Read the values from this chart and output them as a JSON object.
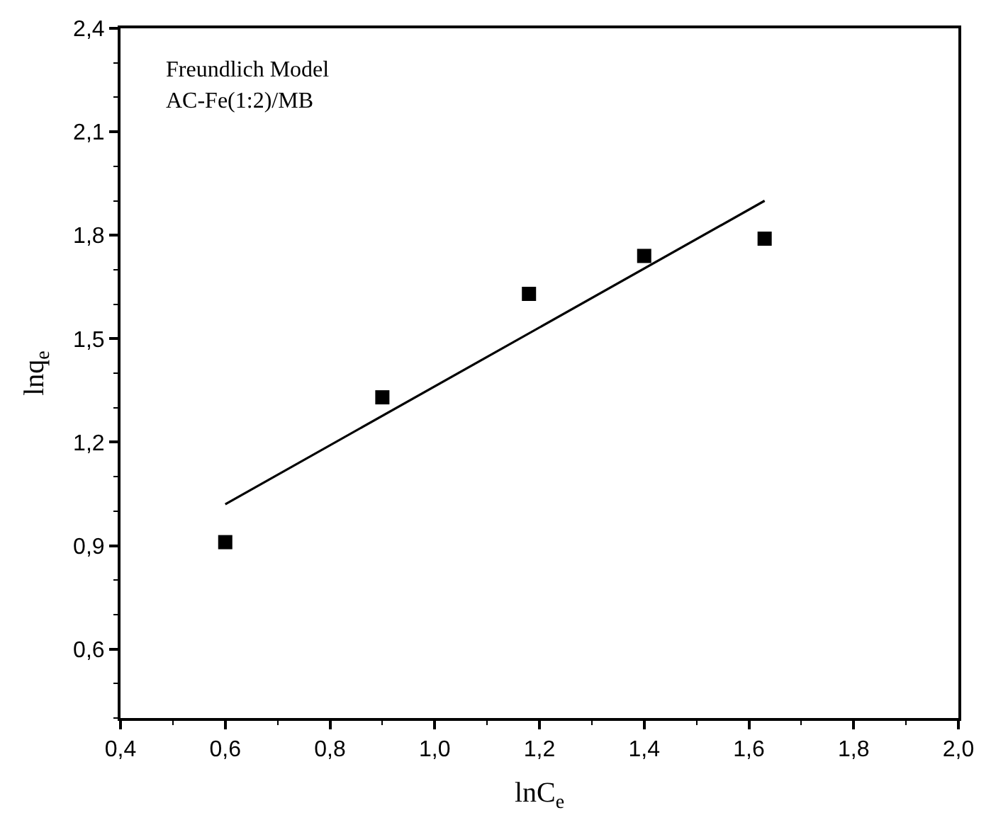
{
  "chart_data": {
    "type": "scatter",
    "xlabel": "lnC$_{e}$",
    "ylabel": "lnq$_{e}$",
    "annotations": [
      "Freundlich Model",
      "AC-Fe(1:2)/MB"
    ],
    "xlim": [
      0.4,
      2.0
    ],
    "ylim": [
      0.4,
      2.4
    ],
    "xticks": [
      {
        "value": 0.4,
        "label": "0,4"
      },
      {
        "value": 0.6,
        "label": "0,6"
      },
      {
        "value": 0.8,
        "label": "0,8"
      },
      {
        "value": 1.0,
        "label": "1,0"
      },
      {
        "value": 1.2,
        "label": "1,2"
      },
      {
        "value": 1.4,
        "label": "1,4"
      },
      {
        "value": 1.6,
        "label": "1,6"
      },
      {
        "value": 1.8,
        "label": "1,8"
      },
      {
        "value": 2.0,
        "label": "2,0"
      }
    ],
    "yticks": [
      {
        "value": 0.6,
        "label": "0,6"
      },
      {
        "value": 0.9,
        "label": "0,9"
      },
      {
        "value": 1.2,
        "label": "1,2"
      },
      {
        "value": 1.5,
        "label": "1,5"
      },
      {
        "value": 1.8,
        "label": "1,8"
      },
      {
        "value": 2.1,
        "label": "2,1"
      },
      {
        "value": 2.4,
        "label": "2,4"
      }
    ],
    "legend": false,
    "series": [
      {
        "marker": "square",
        "color": "#000000",
        "x": [
          0.6,
          0.9,
          1.18,
          1.4,
          1.63
        ],
        "values": [
          0.91,
          1.33,
          1.63,
          1.74,
          1.79
        ]
      },
      {
        "type": "line",
        "color": "#000000",
        "x": [
          0.6,
          1.63
        ],
        "values": [
          1.02,
          1.9
        ]
      }
    ]
  }
}
